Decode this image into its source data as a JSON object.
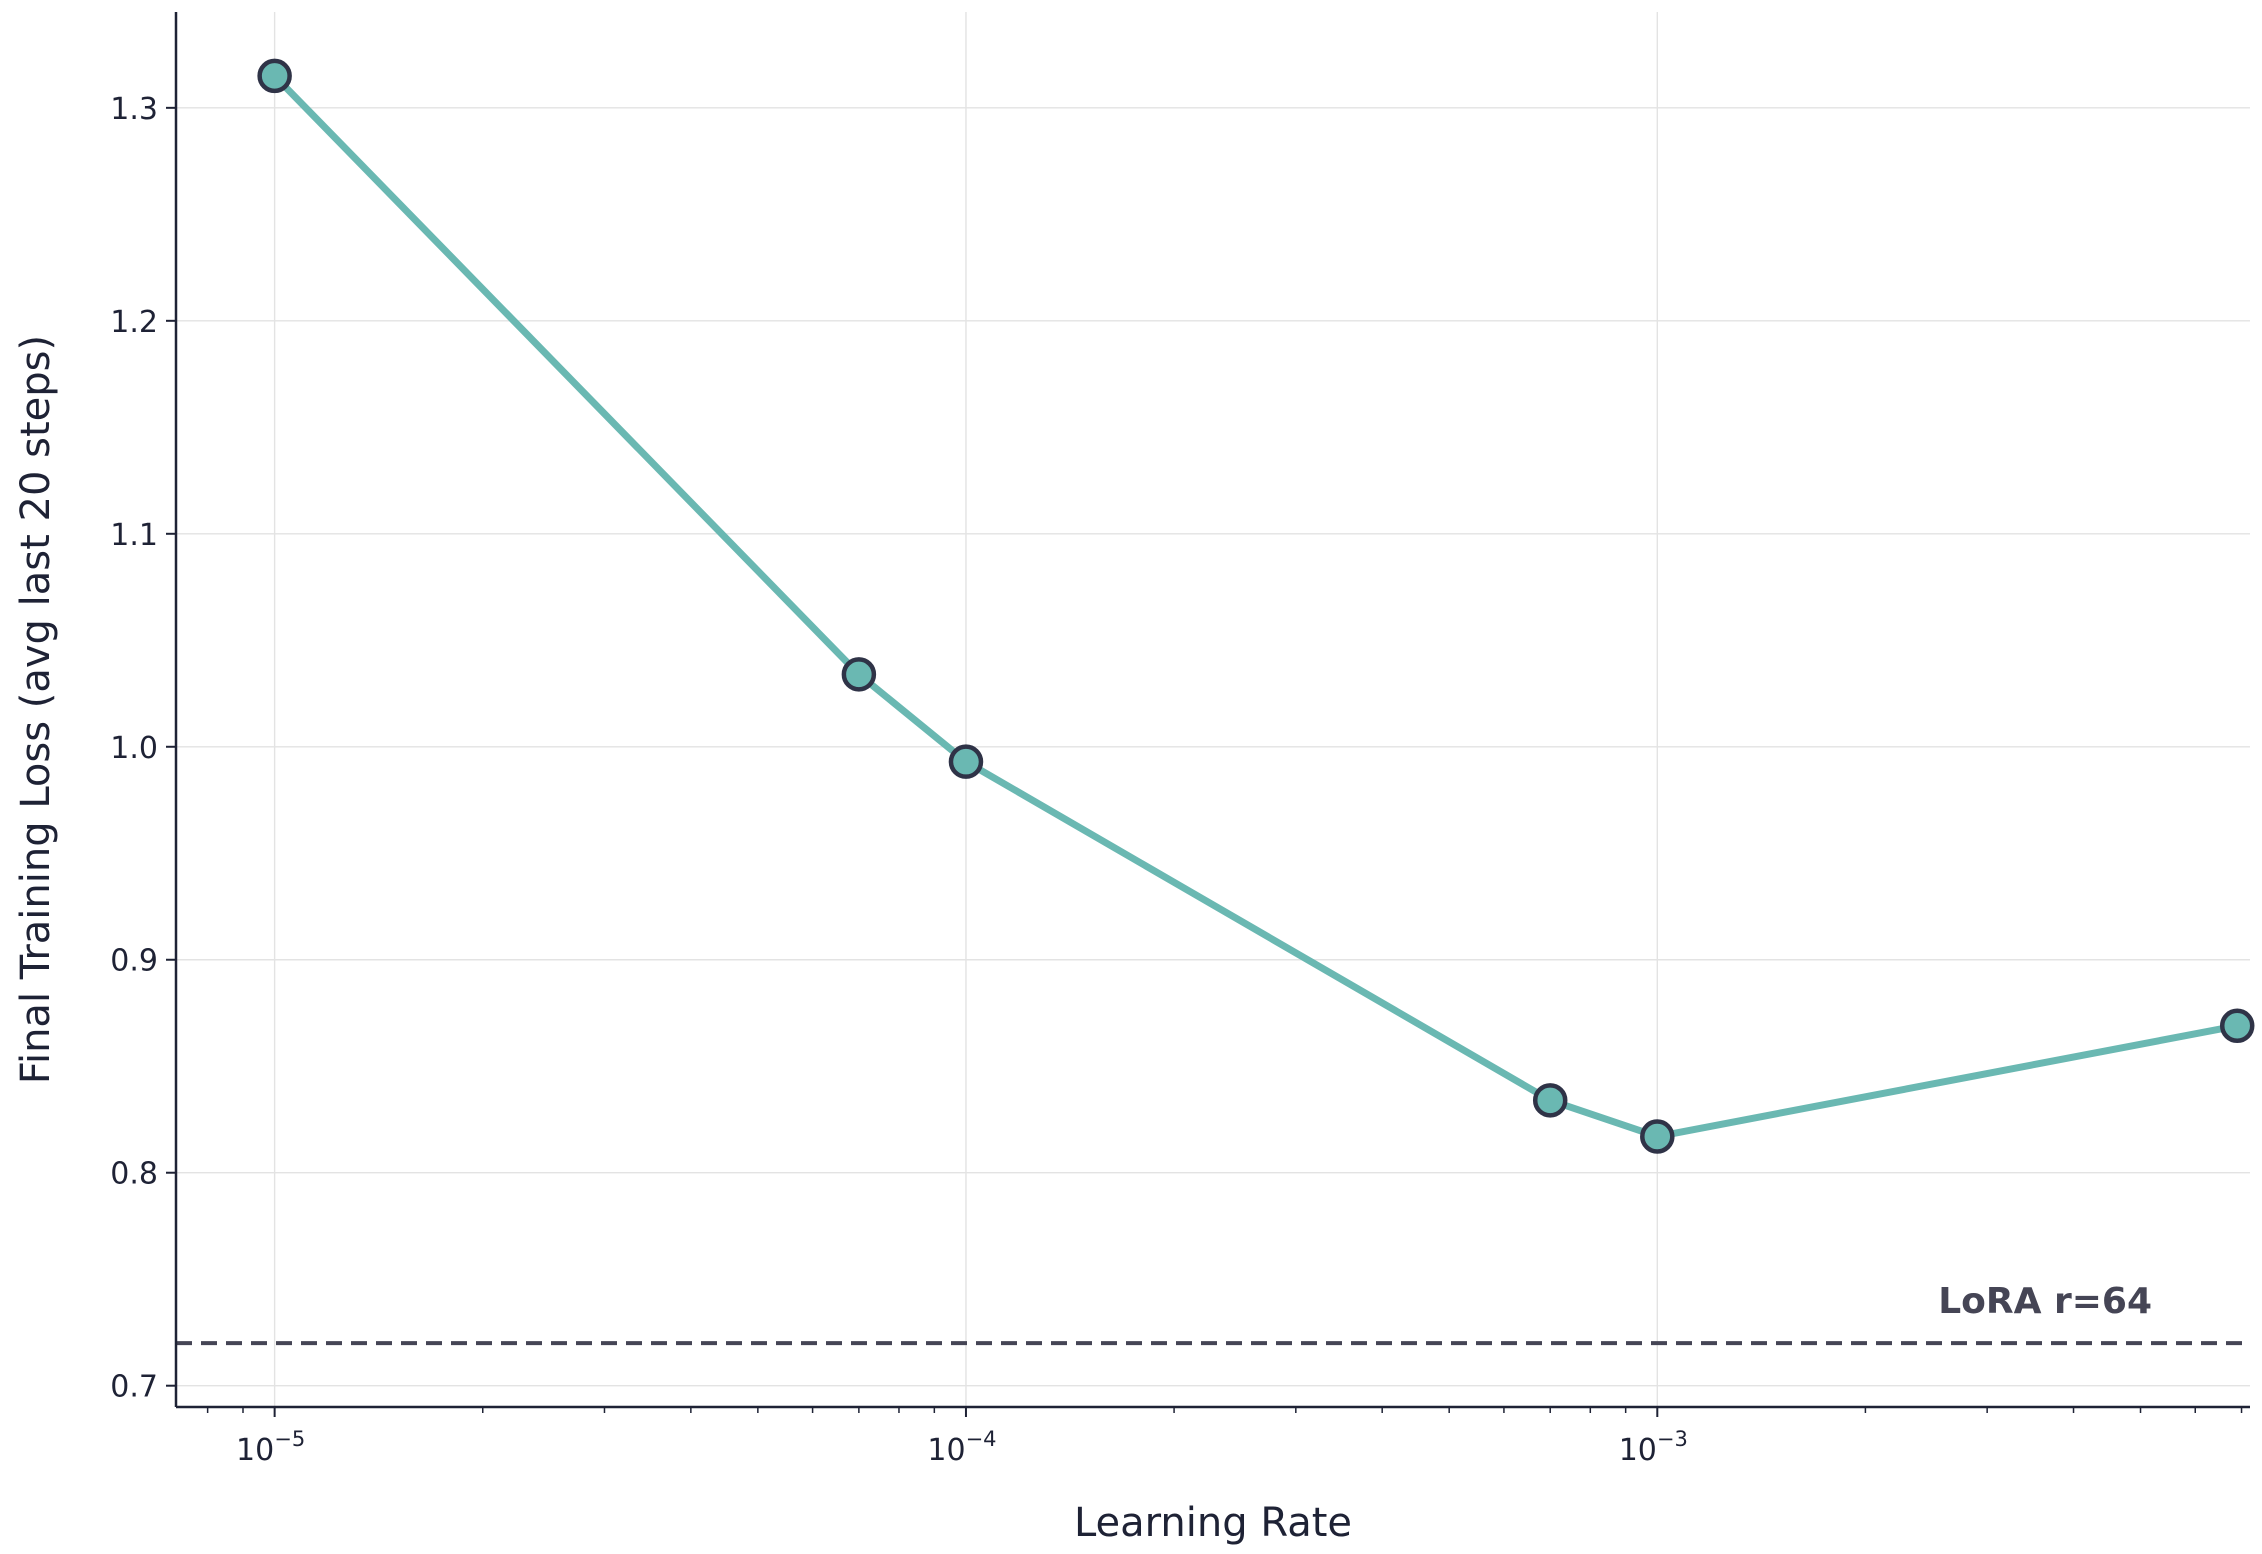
{
  "chart_data": {
    "type": "line",
    "xlabel": "Learning Rate",
    "ylabel": "Final Training Loss (avg last 20 steps)",
    "xscale": "log",
    "xlim": [
      7.2e-06,
      0.0072
    ],
    "ylim": [
      0.69,
      1.345
    ],
    "xticks": [
      {
        "value": 1e-05,
        "base": "10",
        "exp": "−5"
      },
      {
        "value": 0.0001,
        "base": "10",
        "exp": "−4"
      },
      {
        "value": 0.001,
        "base": "10",
        "exp": "−3"
      }
    ],
    "yticks": [
      {
        "value": 0.7,
        "label": "0.7"
      },
      {
        "value": 0.8,
        "label": "0.8"
      },
      {
        "value": 0.9,
        "label": "0.9"
      },
      {
        "value": 1.0,
        "label": "1.0"
      },
      {
        "value": 1.1,
        "label": "1.1"
      },
      {
        "value": 1.2,
        "label": "1.2"
      },
      {
        "value": 1.3,
        "label": "1.3"
      }
    ],
    "grid": true,
    "series": [
      {
        "x": [
          1e-05,
          7e-05,
          0.0001,
          0.0007,
          0.001,
          0.0069
        ],
        "y": [
          1.315,
          1.034,
          0.993,
          0.834,
          0.817,
          0.869
        ],
        "color": "#6ab8b2",
        "marker_edge_color": "#2f3347"
      }
    ],
    "reference_line": {
      "y": 0.72,
      "style": "dashed",
      "color": "#454555",
      "label": "LoRA r=64"
    }
  }
}
